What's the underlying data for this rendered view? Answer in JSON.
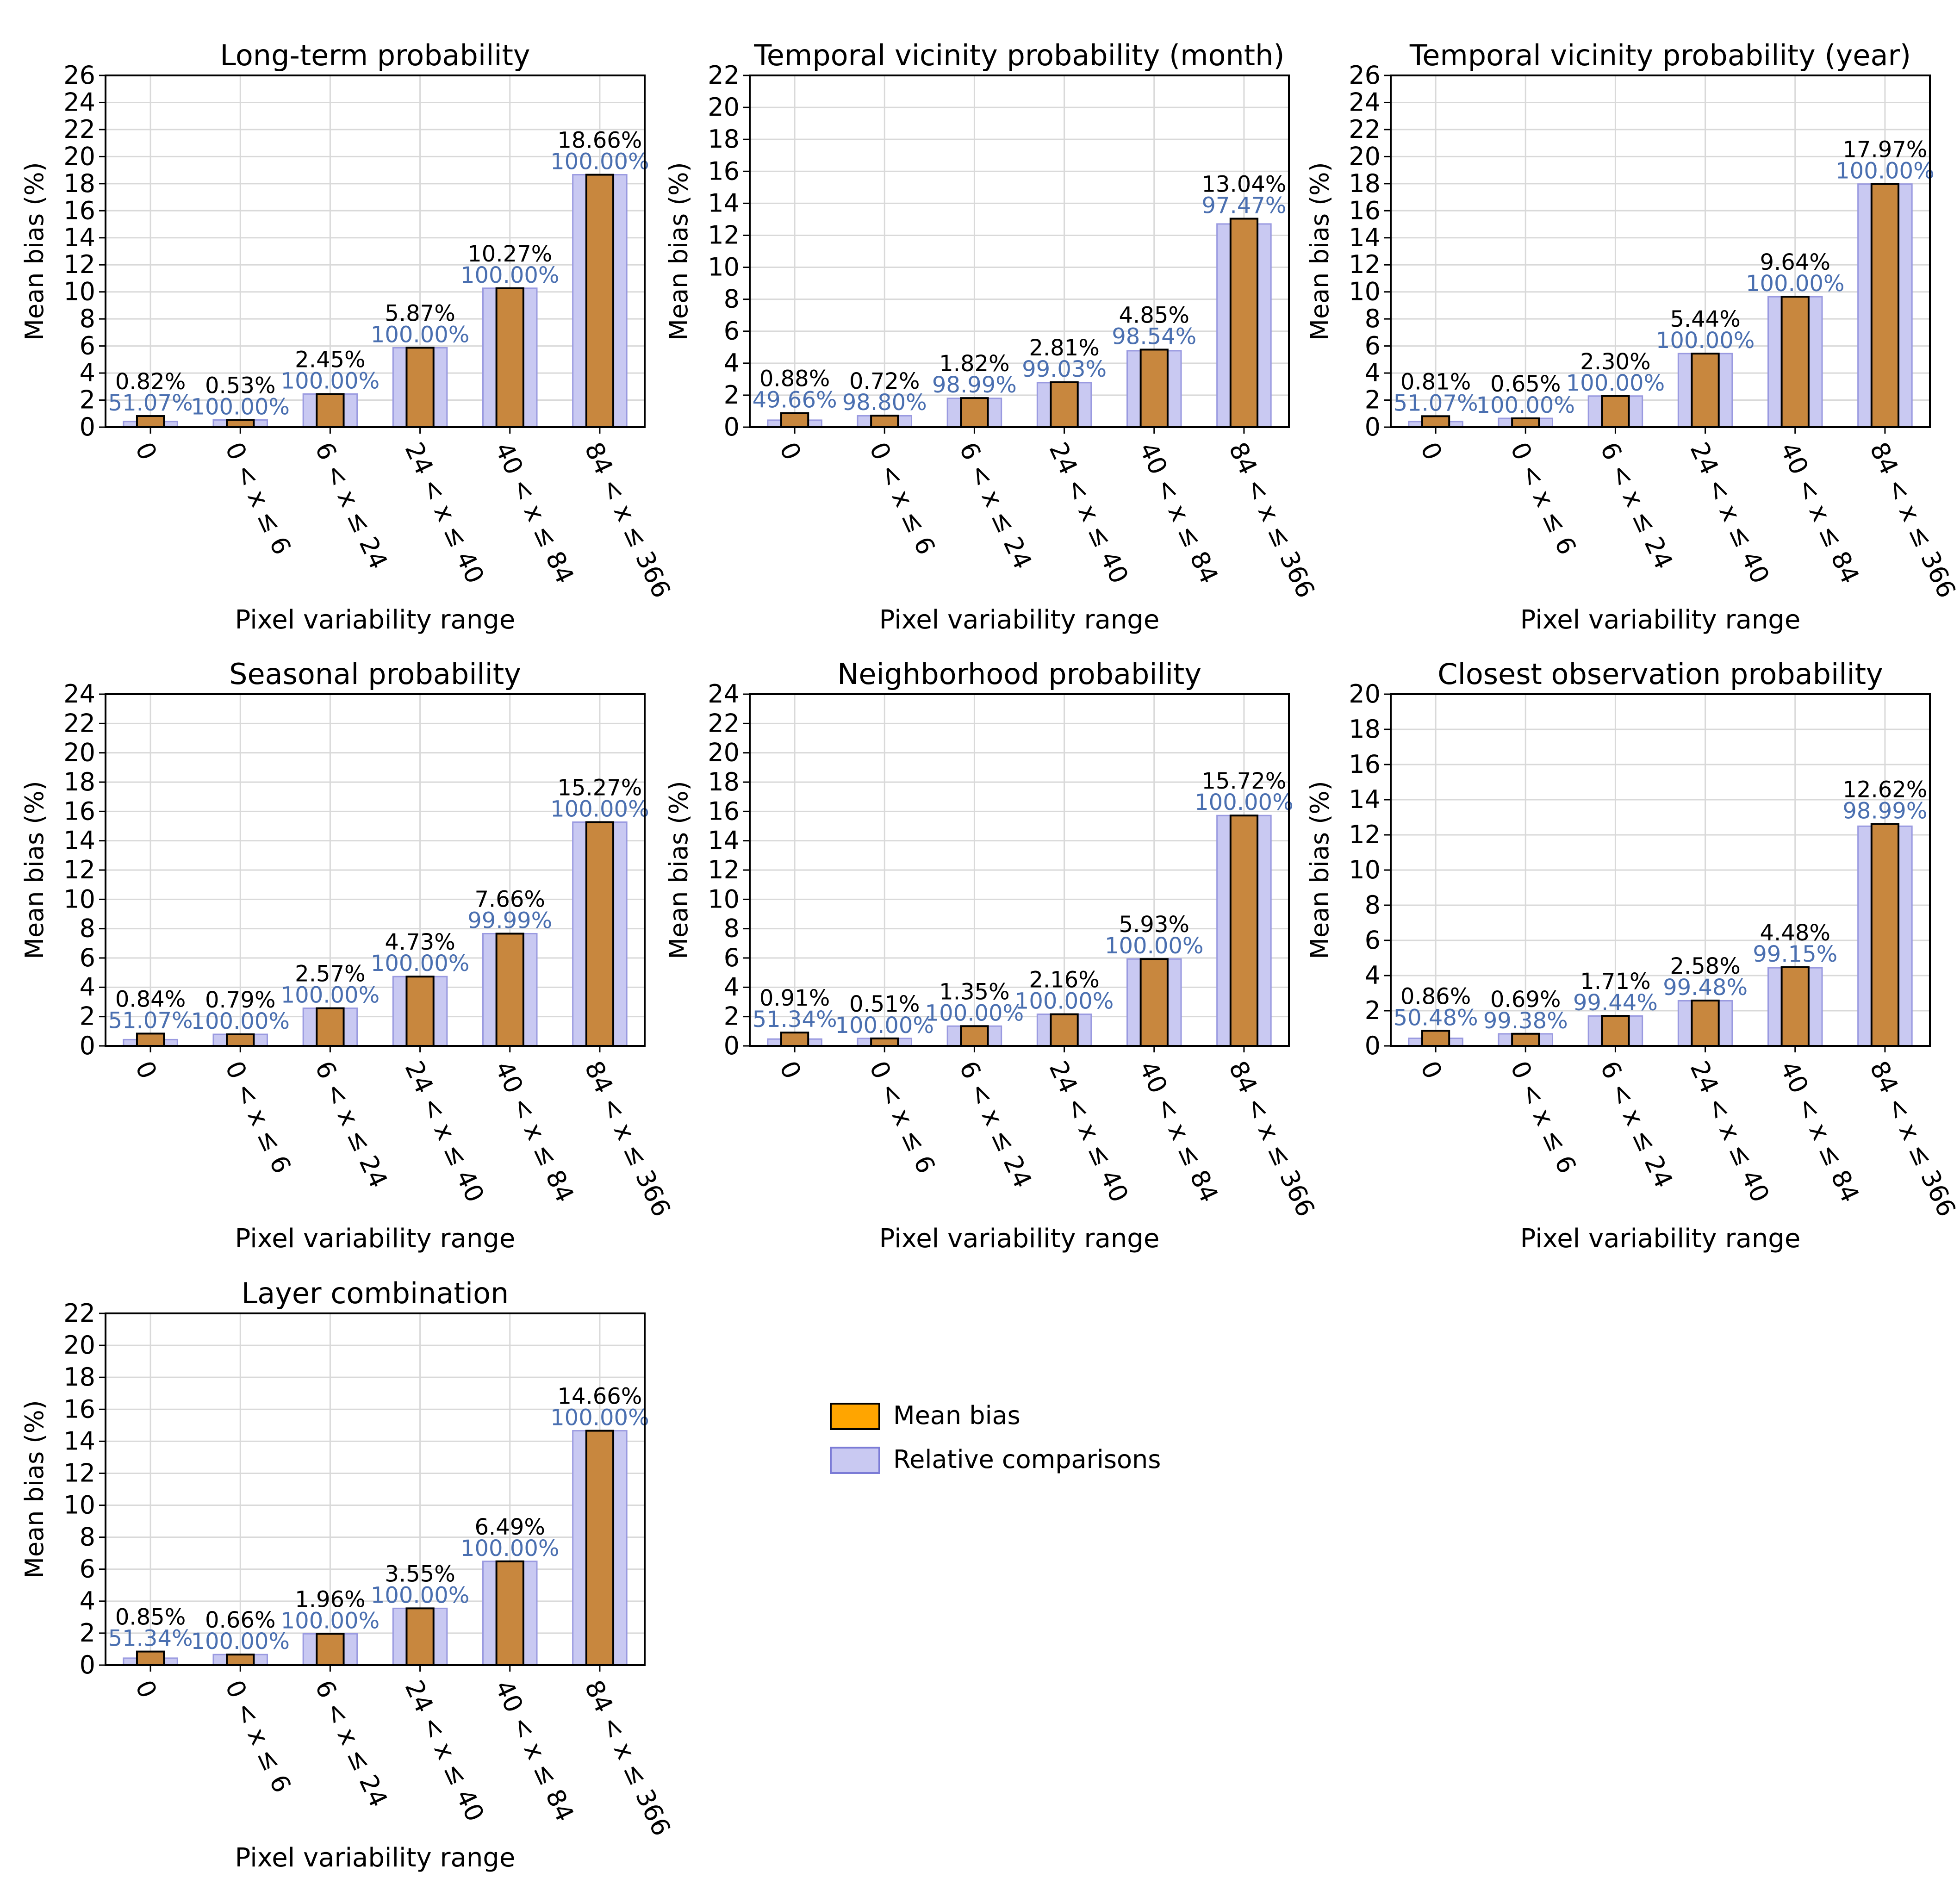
{
  "colors": {
    "mean_bias_fill": "#c8873e",
    "mean_bias_legend_fill": "#ffa500",
    "mean_bias_edge": "#000000",
    "relative_fill": "#c9c9f2",
    "relative_edge": "#9a9ae0",
    "relative_label": "#4a6fb0",
    "grid": "#d9d9d9"
  },
  "legend": {
    "entries": [
      {
        "label": "Mean bias",
        "swatch": "mean_bias"
      },
      {
        "label": "Relative comparisons",
        "swatch": "relative"
      }
    ]
  },
  "chart_data": [
    {
      "type": "bar",
      "title": "Long-term probability",
      "xlabel": "Pixel variability range",
      "ylabel": "Mean bias (%)",
      "ylim": [
        0,
        26
      ],
      "ytick_step": 2,
      "grid": true,
      "categories": [
        "0",
        "0 < x ≤ 6",
        "6 < x ≤ 24",
        "24 < x ≤ 40",
        "40 < x ≤ 84",
        "84 < x ≤ 366"
      ],
      "series": [
        {
          "name": "Mean bias",
          "values": [
            0.82,
            0.53,
            2.45,
            5.87,
            10.27,
            18.66
          ],
          "labels": [
            "0.82%",
            "0.53%",
            "2.45%",
            "5.87%",
            "10.27%",
            "18.66%"
          ]
        },
        {
          "name": "Relative comparisons",
          "percent": [
            51.07,
            100.0,
            100.0,
            100.0,
            100.0,
            100.0
          ],
          "labels": [
            "51.07%",
            "100.00%",
            "100.00%",
            "100.00%",
            "100.00%",
            "100.00%"
          ]
        }
      ]
    },
    {
      "type": "bar",
      "title": "Temporal vicinity probability (month)",
      "xlabel": "Pixel variability range",
      "ylabel": "Mean bias (%)",
      "ylim": [
        0,
        22
      ],
      "ytick_step": 2,
      "grid": true,
      "categories": [
        "0",
        "0 < x ≤ 6",
        "6 < x ≤ 24",
        "24 < x ≤ 40",
        "40 < x ≤ 84",
        "84 < x ≤ 366"
      ],
      "series": [
        {
          "name": "Mean bias",
          "values": [
            0.88,
            0.72,
            1.82,
            2.81,
            4.85,
            13.04
          ],
          "labels": [
            "0.88%",
            "0.72%",
            "1.82%",
            "2.81%",
            "4.85%",
            "13.04%"
          ]
        },
        {
          "name": "Relative comparisons",
          "percent": [
            49.66,
            98.8,
            98.99,
            99.03,
            98.54,
            97.47
          ],
          "labels": [
            "49.66%",
            "98.80%",
            "98.99%",
            "99.03%",
            "98.54%",
            "97.47%"
          ]
        }
      ]
    },
    {
      "type": "bar",
      "title": "Temporal vicinity probability (year)",
      "xlabel": "Pixel variability range",
      "ylabel": "Mean bias (%)",
      "ylim": [
        0,
        26
      ],
      "ytick_step": 2,
      "grid": true,
      "categories": [
        "0",
        "0 < x ≤ 6",
        "6 < x ≤ 24",
        "24 < x ≤ 40",
        "40 < x ≤ 84",
        "84 < x ≤ 366"
      ],
      "series": [
        {
          "name": "Mean bias",
          "values": [
            0.81,
            0.65,
            2.3,
            5.44,
            9.64,
            17.97
          ],
          "labels": [
            "0.81%",
            "0.65%",
            "2.30%",
            "5.44%",
            "9.64%",
            "17.97%"
          ]
        },
        {
          "name": "Relative comparisons",
          "percent": [
            51.07,
            100.0,
            100.0,
            100.0,
            100.0,
            100.0
          ],
          "labels": [
            "51.07%",
            "100.00%",
            "100.00%",
            "100.00%",
            "100.00%",
            "100.00%"
          ]
        }
      ]
    },
    {
      "type": "bar",
      "title": "Seasonal probability",
      "xlabel": "Pixel variability range",
      "ylabel": "Mean bias (%)",
      "ylim": [
        0,
        24
      ],
      "ytick_step": 2,
      "grid": true,
      "categories": [
        "0",
        "0 < x ≤ 6",
        "6 < x ≤ 24",
        "24 < x ≤ 40",
        "40 < x ≤ 84",
        "84 < x ≤ 366"
      ],
      "series": [
        {
          "name": "Mean bias",
          "values": [
            0.84,
            0.79,
            2.57,
            4.73,
            7.66,
            15.27
          ],
          "labels": [
            "0.84%",
            "0.79%",
            "2.57%",
            "4.73%",
            "7.66%",
            "15.27%"
          ]
        },
        {
          "name": "Relative comparisons",
          "percent": [
            51.07,
            100.0,
            100.0,
            100.0,
            99.99,
            100.0
          ],
          "labels": [
            "51.07%",
            "100.00%",
            "100.00%",
            "100.00%",
            "99.99%",
            "100.00%"
          ]
        }
      ]
    },
    {
      "type": "bar",
      "title": "Neighborhood probability",
      "xlabel": "Pixel variability range",
      "ylabel": "Mean bias (%)",
      "ylim": [
        0,
        24
      ],
      "ytick_step": 2,
      "grid": true,
      "categories": [
        "0",
        "0 < x ≤ 6",
        "6 < x ≤ 24",
        "24 < x ≤ 40",
        "40 < x ≤ 84",
        "84 < x ≤ 366"
      ],
      "series": [
        {
          "name": "Mean bias",
          "values": [
            0.91,
            0.51,
            1.35,
            2.16,
            5.93,
            15.72
          ],
          "labels": [
            "0.91%",
            "0.51%",
            "1.35%",
            "2.16%",
            "5.93%",
            "15.72%"
          ]
        },
        {
          "name": "Relative comparisons",
          "percent": [
            51.34,
            100.0,
            100.0,
            100.0,
            100.0,
            100.0
          ],
          "labels": [
            "51.34%",
            "100.00%",
            "100.00%",
            "100.00%",
            "100.00%",
            "100.00%"
          ]
        }
      ]
    },
    {
      "type": "bar",
      "title": "Closest observation probability",
      "xlabel": "Pixel variability range",
      "ylabel": "Mean bias (%)",
      "ylim": [
        0,
        20
      ],
      "ytick_step": 2,
      "grid": true,
      "categories": [
        "0",
        "0 < x ≤ 6",
        "6 < x ≤ 24",
        "24 < x ≤ 40",
        "40 < x ≤ 84",
        "84 < x ≤ 366"
      ],
      "series": [
        {
          "name": "Mean bias",
          "values": [
            0.86,
            0.69,
            1.71,
            2.58,
            4.48,
            12.62
          ],
          "labels": [
            "0.86%",
            "0.69%",
            "1.71%",
            "2.58%",
            "4.48%",
            "12.62%"
          ]
        },
        {
          "name": "Relative comparisons",
          "percent": [
            50.48,
            99.38,
            99.44,
            99.48,
            99.15,
            98.99
          ],
          "labels": [
            "50.48%",
            "99.38%",
            "99.44%",
            "99.48%",
            "99.15%",
            "98.99%"
          ]
        }
      ]
    },
    {
      "type": "bar",
      "title": "Layer combination",
      "xlabel": "Pixel variability range",
      "ylabel": "Mean bias (%)",
      "ylim": [
        0,
        22
      ],
      "ytick_step": 2,
      "grid": true,
      "categories": [
        "0",
        "0 < x ≤ 6",
        "6 < x ≤ 24",
        "24 < x ≤ 40",
        "40 < x ≤ 84",
        "84 < x ≤ 366"
      ],
      "series": [
        {
          "name": "Mean bias",
          "values": [
            0.85,
            0.66,
            1.96,
            3.55,
            6.49,
            14.66
          ],
          "labels": [
            "0.85%",
            "0.66%",
            "1.96%",
            "3.55%",
            "6.49%",
            "14.66%"
          ]
        },
        {
          "name": "Relative comparisons",
          "percent": [
            51.34,
            100.0,
            100.0,
            100.0,
            100.0,
            100.0
          ],
          "labels": [
            "51.34%",
            "100.00%",
            "100.00%",
            "100.00%",
            "100.00%",
            "100.00%"
          ]
        }
      ]
    }
  ]
}
